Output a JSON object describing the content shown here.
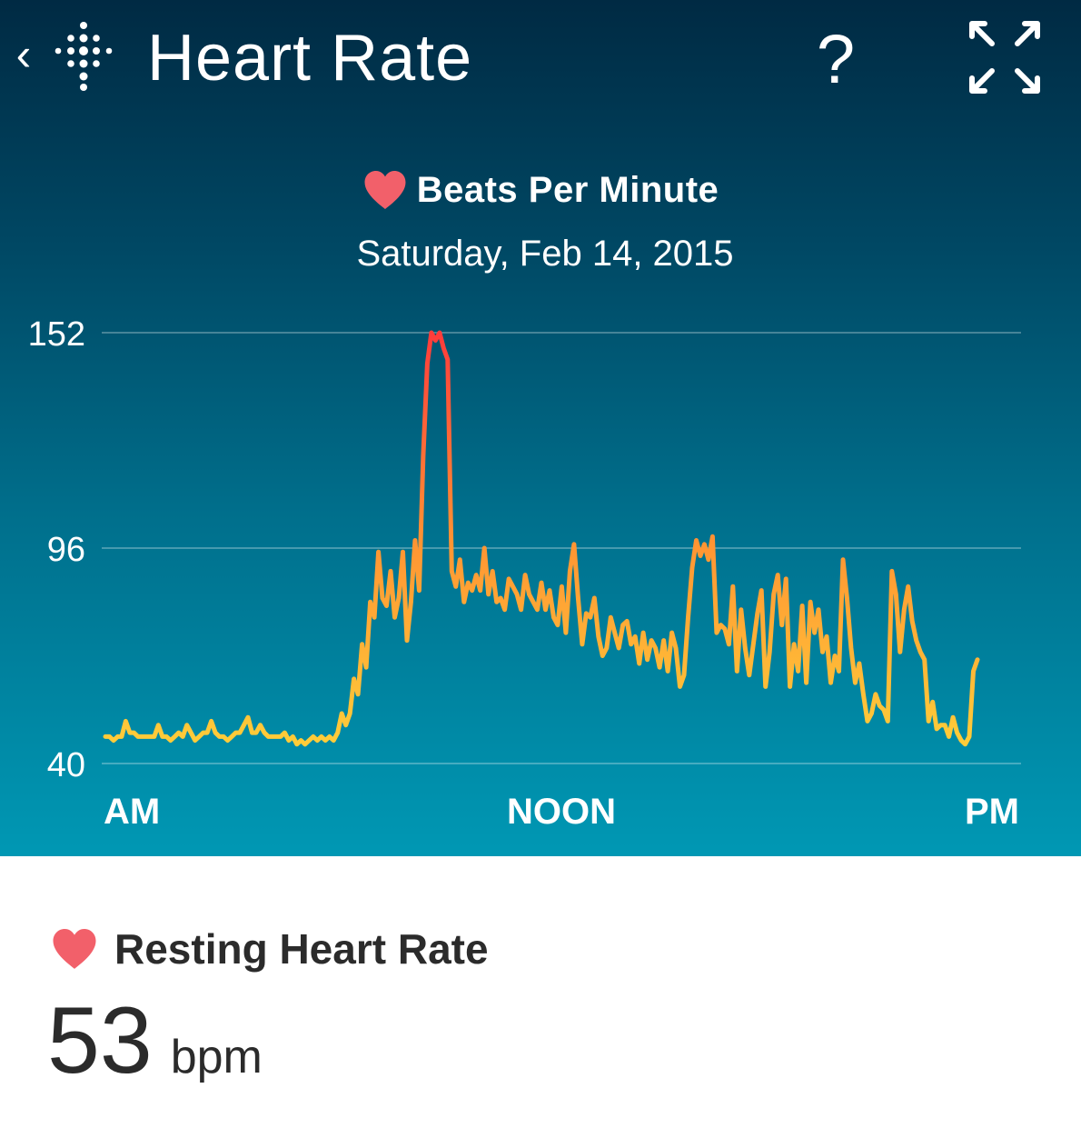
{
  "header": {
    "back_icon": "chevron-left-icon",
    "logo_icon": "fitbit-dots-logo-icon",
    "title": "Heart Rate",
    "help_label": "?",
    "expand_icon": "expand-arrows-icon"
  },
  "chart_header": {
    "heart_icon": "heart-icon",
    "heart_color": "#f2606a",
    "label": "Beats Per Minute",
    "date": "Saturday, Feb 14, 2015"
  },
  "chart_data": {
    "type": "line",
    "title": "Beats Per Minute",
    "subtitle": "Saturday, Feb 14, 2015",
    "y_ticks": [
      152,
      96,
      40
    ],
    "ylim": [
      40,
      152
    ],
    "x_tick_labels": [
      "AM",
      "NOON",
      "PM"
    ],
    "grid": true,
    "gradient_colors": {
      "high": "#ff3b3b",
      "mid": "#ff9633",
      "low": "#ffd23a"
    },
    "series": [
      {
        "values": [
          47,
          47,
          46,
          47,
          47,
          51,
          48,
          48,
          47,
          47,
          47,
          47,
          47,
          50,
          47,
          47,
          46,
          47,
          48,
          47,
          50,
          48,
          46,
          47,
          48,
          48,
          51,
          48,
          47,
          47,
          46,
          47,
          48,
          48,
          50,
          52,
          48,
          48,
          50,
          48,
          47,
          47,
          47,
          47,
          48,
          46,
          47,
          45,
          46,
          45,
          46,
          47,
          46,
          47,
          46,
          47,
          46,
          48,
          53,
          50,
          53,
          62,
          58,
          71,
          65,
          82,
          78,
          95,
          83,
          81,
          90,
          78,
          83,
          95,
          72,
          82,
          98,
          85,
          120,
          144,
          152,
          150,
          152,
          148,
          145,
          90,
          86,
          93,
          82,
          87,
          85,
          89,
          85,
          96,
          84,
          90,
          82,
          83,
          80,
          88,
          86,
          84,
          80,
          89,
          84,
          82,
          80,
          87,
          80,
          85,
          78,
          76,
          86,
          74,
          90,
          97,
          83,
          71,
          79,
          78,
          83,
          73,
          68,
          70,
          78,
          74,
          70,
          76,
          77,
          71,
          73,
          66,
          74,
          67,
          72,
          70,
          65,
          72,
          64,
          74,
          70,
          60,
          63,
          78,
          91,
          98,
          94,
          97,
          93,
          99,
          74,
          76,
          75,
          71,
          86,
          64,
          80,
          70,
          63,
          71,
          79,
          85,
          60,
          69,
          84,
          89,
          76,
          88,
          60,
          71,
          64,
          81,
          61,
          82,
          74,
          80,
          69,
          73,
          61,
          68,
          64,
          93,
          83,
          70,
          61,
          66,
          58,
          51,
          53,
          58,
          55,
          54,
          51,
          90,
          84,
          69,
          80,
          86,
          77,
          72,
          69,
          67,
          51,
          56,
          49,
          50,
          50,
          47,
          52,
          48,
          46,
          45,
          47,
          64,
          67
        ]
      }
    ]
  },
  "resting": {
    "heart_icon": "heart-icon",
    "heart_color": "#f2606a",
    "label": "Resting Heart Rate",
    "value": "53",
    "unit": "bpm"
  }
}
